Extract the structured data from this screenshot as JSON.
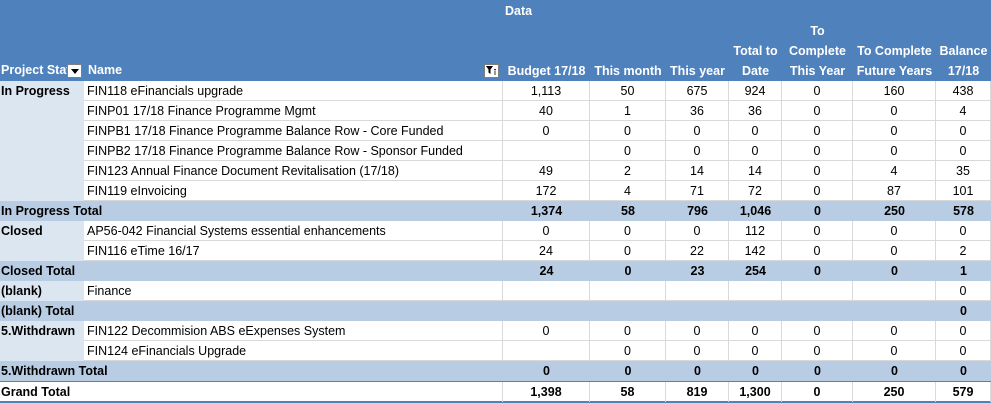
{
  "header": {
    "data_label": "Data",
    "project_status": "Project Stat",
    "name": "Name",
    "columns": [
      "Budget 17/18",
      "This month",
      "This year",
      "Total to Date",
      "To Complete This Year",
      "To Complete Future Years",
      "Balance 17/18"
    ],
    "col_lines": [
      [
        "Budget 17/18"
      ],
      [
        "This month"
      ],
      [
        "This year"
      ],
      [
        "Total to",
        "Date"
      ],
      [
        "To",
        "Complete",
        "This Year"
      ],
      [
        "To Complete",
        "Future Years"
      ],
      [
        "Balance",
        "17/18"
      ]
    ]
  },
  "rows": [
    {
      "kind": "data",
      "status": "In Progress",
      "name": "FIN118 eFinancials upgrade",
      "values": [
        "1,113",
        "50",
        "675",
        "924",
        "0",
        "160",
        "438"
      ]
    },
    {
      "kind": "data",
      "status": "",
      "name": "FINP01 17/18 Finance Programme Mgmt",
      "values": [
        "40",
        "1",
        "36",
        "36",
        "0",
        "0",
        "4"
      ]
    },
    {
      "kind": "data",
      "status": "",
      "name": "FINPB1 17/18 Finance Programme Balance Row - Core Funded",
      "values": [
        "0",
        "0",
        "0",
        "0",
        "0",
        "0",
        "0"
      ]
    },
    {
      "kind": "data",
      "status": "",
      "name": "FINPB2 17/18 Finance Programme Balance Row - Sponsor Funded",
      "values": [
        "",
        "0",
        "0",
        "0",
        "0",
        "0",
        "0"
      ]
    },
    {
      "kind": "data",
      "status": "",
      "name": "FIN123 Annual Finance Document Revitalisation (17/18)",
      "values": [
        "49",
        "2",
        "14",
        "14",
        "0",
        "4",
        "35"
      ]
    },
    {
      "kind": "data",
      "status": "",
      "name": "FIN119 eInvoicing",
      "values": [
        "172",
        "4",
        "71",
        "72",
        "0",
        "87",
        "101"
      ]
    },
    {
      "kind": "sub",
      "label": "In Progress Total",
      "values": [
        "1,374",
        "58",
        "796",
        "1,046",
        "0",
        "250",
        "578"
      ]
    },
    {
      "kind": "data",
      "status": "Closed",
      "name": "AP56-042 Financial Systems essential enhancements",
      "values": [
        "0",
        "0",
        "0",
        "112",
        "0",
        "0",
        "0"
      ]
    },
    {
      "kind": "data",
      "status": "",
      "name": "FIN116 eTime 16/17",
      "values": [
        "24",
        "0",
        "22",
        "142",
        "0",
        "0",
        "2"
      ]
    },
    {
      "kind": "sub",
      "label": "Closed Total",
      "values": [
        "24",
        "0",
        "23",
        "254",
        "0",
        "0",
        "1"
      ]
    },
    {
      "kind": "data",
      "status": "(blank)",
      "name": "Finance",
      "values": [
        "",
        "",
        "",
        "",
        "",
        "",
        "0"
      ]
    },
    {
      "kind": "sub",
      "label": "(blank) Total",
      "values": [
        "",
        "",
        "",
        "",
        "",
        "",
        "0"
      ]
    },
    {
      "kind": "data",
      "status": "5.Withdrawn",
      "name": "FIN122 Decommision ABS eExpenses System",
      "values": [
        "0",
        "0",
        "0",
        "0",
        "0",
        "0",
        "0"
      ]
    },
    {
      "kind": "data",
      "status": "",
      "name": "FIN124 eFinancials Upgrade",
      "values": [
        "",
        "0",
        "0",
        "0",
        "0",
        "0",
        "0"
      ]
    },
    {
      "kind": "sub",
      "label": "5.Withdrawn Total",
      "values": [
        "0",
        "0",
        "0",
        "0",
        "0",
        "0",
        "0"
      ]
    },
    {
      "kind": "grand",
      "label": "Grand Total",
      "values": [
        "1,398",
        "58",
        "819",
        "1,300",
        "0",
        "250",
        "579"
      ]
    }
  ]
}
